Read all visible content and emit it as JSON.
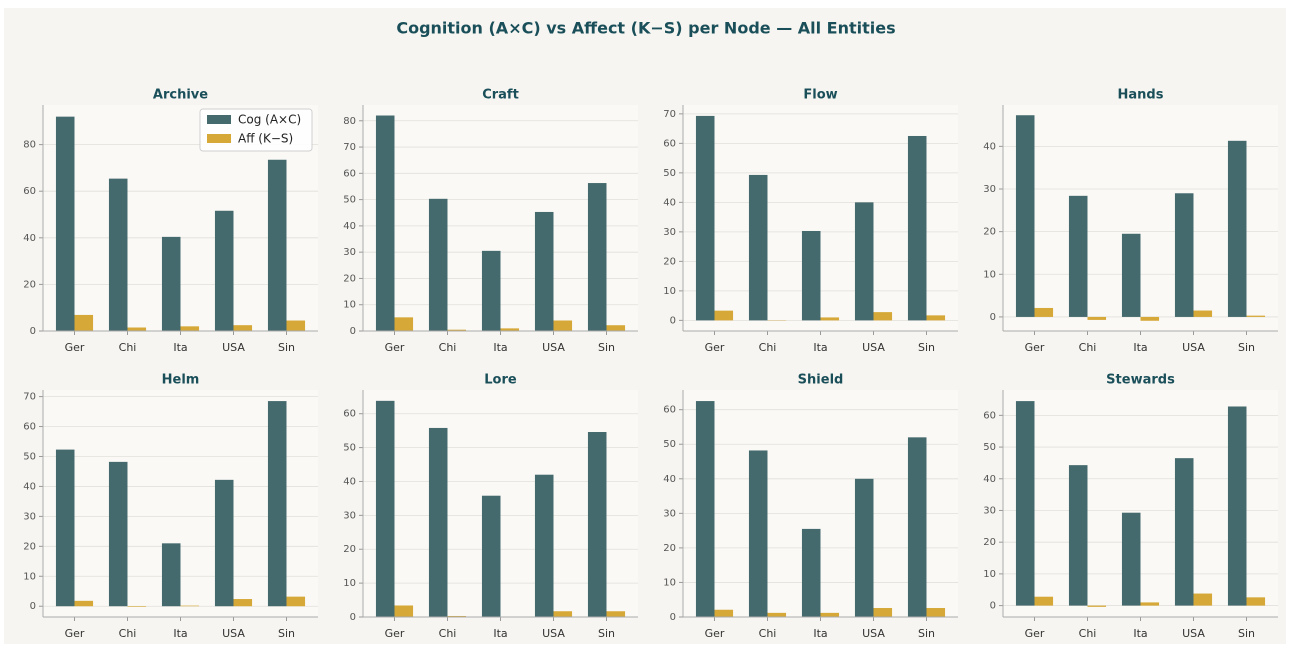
{
  "title": "Cognition (A×C) vs Affect (K−S) per Node — All Entities",
  "chart_data": [
    {
      "type": "bar",
      "title": "Archive",
      "categories": [
        "Ger",
        "Chi",
        "Ita",
        "USA",
        "Sin"
      ],
      "ylim": [
        0,
        97
      ],
      "yticks": [
        0,
        20,
        40,
        60,
        80
      ],
      "grid": true,
      "legend": "upper right",
      "series": [
        {
          "name": "Cog (A×C)",
          "color": "#456a6d",
          "values": [
            92,
            65.4,
            40.4,
            51.6,
            73.5
          ]
        },
        {
          "name": "Aff (K−S)",
          "color": "#d6a838",
          "values": [
            6.9,
            1.5,
            2,
            2.5,
            4.5
          ]
        }
      ]
    },
    {
      "type": "bar",
      "title": "Craft",
      "categories": [
        "Ger",
        "Chi",
        "Ita",
        "USA",
        "Sin"
      ],
      "ylim": [
        0,
        86
      ],
      "yticks": [
        0,
        10,
        20,
        30,
        40,
        50,
        60,
        70,
        80
      ],
      "grid": true,
      "series": [
        {
          "color": "#456a6d",
          "values": [
            82,
            50.3,
            30.5,
            45.3,
            56.3
          ]
        },
        {
          "color": "#d6a838",
          "values": [
            5.2,
            0.5,
            1,
            4,
            2.2
          ]
        }
      ]
    },
    {
      "type": "bar",
      "title": "Flow",
      "categories": [
        "Ger",
        "Chi",
        "Ita",
        "USA",
        "Sin"
      ],
      "ylim": [
        -3.6,
        73
      ],
      "yticks": [
        0,
        10,
        20,
        30,
        40,
        50,
        60,
        70
      ],
      "grid": true,
      "series": [
        {
          "color": "#456a6d",
          "values": [
            69.3,
            49.3,
            30.3,
            40,
            62.5
          ]
        },
        {
          "color": "#d6a838",
          "values": [
            3.3,
            -0.1,
            1,
            2.8,
            1.7
          ]
        }
      ]
    },
    {
      "type": "bar",
      "title": "Hands",
      "categories": [
        "Ger",
        "Chi",
        "Ita",
        "USA",
        "Sin"
      ],
      "ylim": [
        -3.3,
        49.7
      ],
      "yticks": [
        0,
        10,
        20,
        30,
        40
      ],
      "grid": true,
      "series": [
        {
          "color": "#456a6d",
          "values": [
            47.3,
            28.4,
            19.5,
            29,
            41.3
          ]
        },
        {
          "color": "#d6a838",
          "values": [
            2.1,
            -0.7,
            -0.9,
            1.5,
            0.3
          ]
        }
      ]
    },
    {
      "type": "bar",
      "title": "Helm",
      "categories": [
        "Ger",
        "Chi",
        "Ita",
        "USA",
        "Sin"
      ],
      "ylim": [
        -3.6,
        72.2
      ],
      "yticks": [
        0,
        10,
        20,
        30,
        40,
        50,
        60,
        70
      ],
      "grid": true,
      "series": [
        {
          "color": "#456a6d",
          "values": [
            52.3,
            48.2,
            21,
            42.2,
            68.5
          ]
        },
        {
          "color": "#d6a838",
          "values": [
            1.8,
            -0.2,
            0.2,
            2.4,
            3.2
          ]
        }
      ]
    },
    {
      "type": "bar",
      "title": "Lore",
      "categories": [
        "Ger",
        "Chi",
        "Ita",
        "USA",
        "Sin"
      ],
      "ylim": [
        0,
        67
      ],
      "yticks": [
        0,
        10,
        20,
        30,
        40,
        50,
        60
      ],
      "grid": true,
      "series": [
        {
          "color": "#456a6d",
          "values": [
            63.8,
            55.8,
            35.8,
            42,
            54.6
          ]
        },
        {
          "color": "#d6a838",
          "values": [
            3.4,
            0.3,
            0,
            1.7,
            1.7
          ]
        }
      ]
    },
    {
      "type": "bar",
      "title": "Shield",
      "categories": [
        "Ger",
        "Chi",
        "Ita",
        "USA",
        "Sin"
      ],
      "ylim": [
        0,
        65.7
      ],
      "yticks": [
        0,
        10,
        20,
        30,
        40,
        50,
        60
      ],
      "grid": true,
      "series": [
        {
          "color": "#456a6d",
          "values": [
            62.5,
            48.2,
            25.5,
            40,
            52
          ]
        },
        {
          "color": "#d6a838",
          "values": [
            2.1,
            1.2,
            1.2,
            2.6,
            2.6
          ]
        }
      ]
    },
    {
      "type": "bar",
      "title": "Stewards",
      "categories": [
        "Ger",
        "Chi",
        "Ita",
        "USA",
        "Sin"
      ],
      "ylim": [
        -3.6,
        68
      ],
      "yticks": [
        0,
        10,
        20,
        30,
        40,
        50,
        60
      ],
      "grid": true,
      "series": [
        {
          "color": "#456a6d",
          "values": [
            64.5,
            44.3,
            29.3,
            46.5,
            62.8
          ]
        },
        {
          "color": "#d6a838",
          "values": [
            2.8,
            -0.4,
            1,
            3.8,
            2.6
          ]
        }
      ]
    }
  ]
}
